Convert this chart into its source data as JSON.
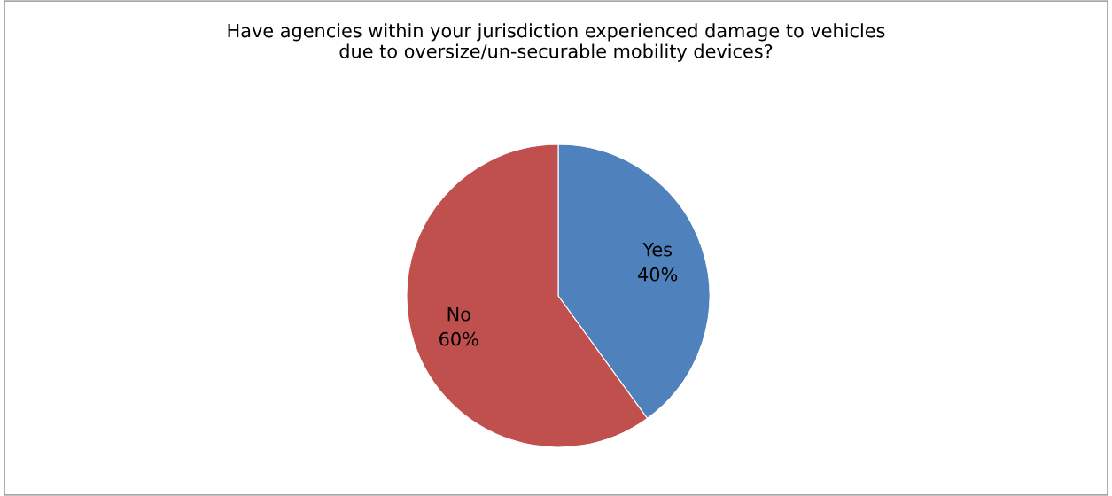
{
  "chart_data": {
    "type": "pie",
    "title": "Have agencies within your jurisdiction experienced damage to vehicles\ndue to oversize/un-securable mobility devices?",
    "categories": [
      "Yes",
      "No"
    ],
    "values": [
      40,
      60
    ],
    "colors": [
      "#4f81bd",
      "#c0504d"
    ],
    "value_labels": [
      "40%",
      "60%"
    ],
    "legend": false
  }
}
